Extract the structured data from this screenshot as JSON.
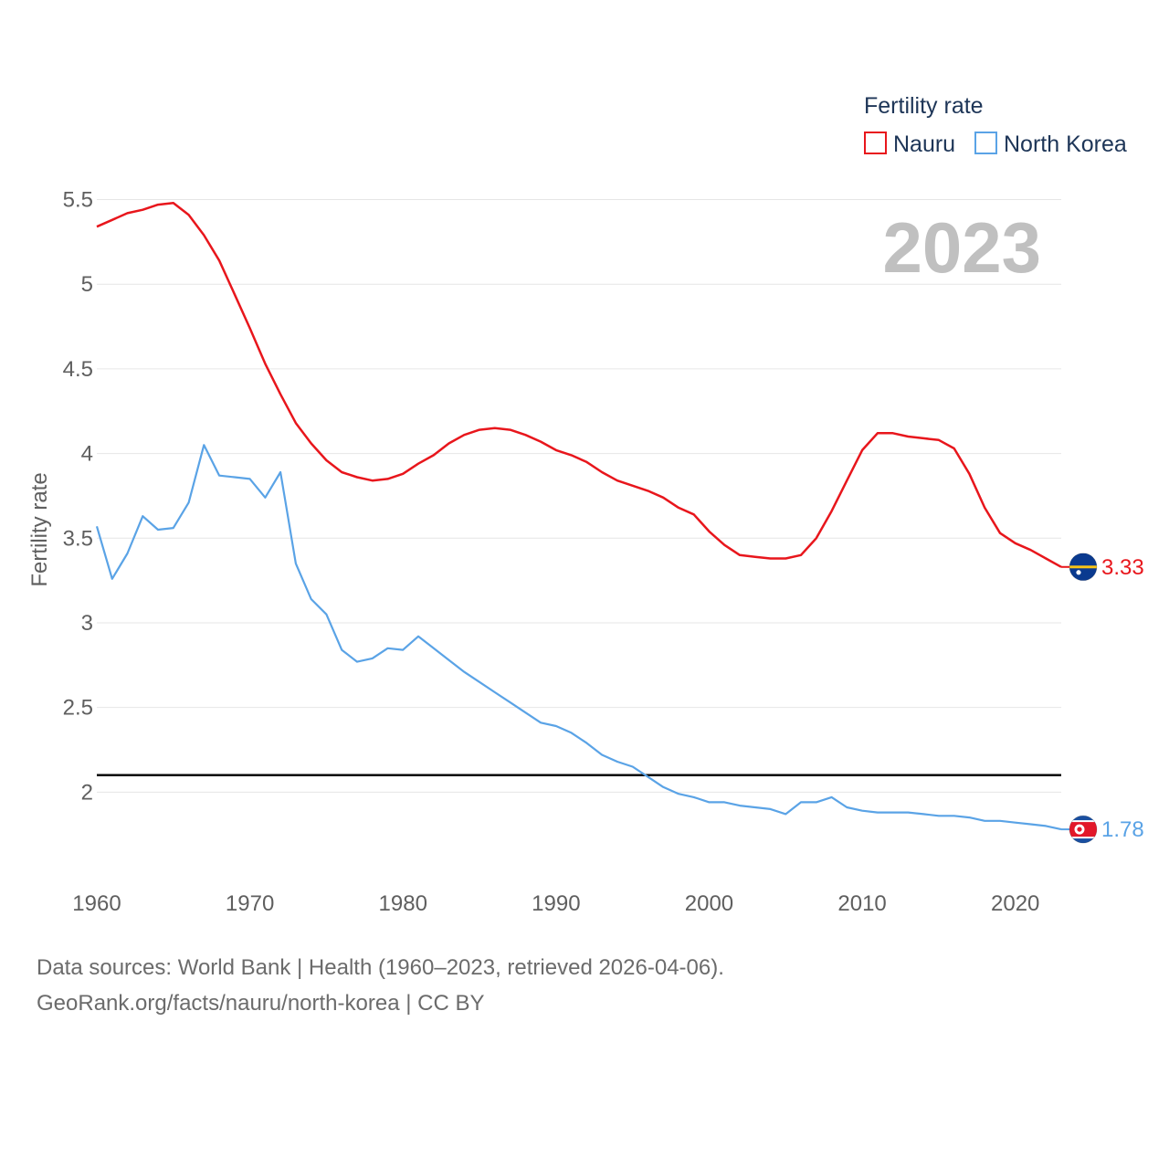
{
  "chart_data": {
    "type": "line",
    "watermark_year": "2023",
    "ylabel": "Fertility rate",
    "xlim": [
      1960,
      2023
    ],
    "ylim": [
      1.5,
      5.6
    ],
    "y_ticks": [
      2,
      2.5,
      3,
      3.5,
      4,
      4.5,
      5,
      5.5
    ],
    "y_tick_labels": [
      "2",
      "2.5",
      "3",
      "3.5",
      "4",
      "4.5",
      "5",
      "5.5"
    ],
    "x_ticks": [
      1960,
      1970,
      1980,
      1990,
      2000,
      2010,
      2020
    ],
    "x_tick_labels": [
      "1960",
      "1970",
      "1980",
      "1990",
      "2000",
      "2010",
      "2020"
    ],
    "reference_line": {
      "y": 2.1,
      "color": "#000000"
    },
    "legend": {
      "title": "Fertility rate",
      "position": "top-right"
    },
    "x": [
      1960,
      1961,
      1962,
      1963,
      1964,
      1965,
      1966,
      1967,
      1968,
      1969,
      1970,
      1971,
      1972,
      1973,
      1974,
      1975,
      1976,
      1977,
      1978,
      1979,
      1980,
      1981,
      1982,
      1983,
      1984,
      1985,
      1986,
      1987,
      1988,
      1989,
      1990,
      1991,
      1992,
      1993,
      1994,
      1995,
      1996,
      1997,
      1998,
      1999,
      2000,
      2001,
      2002,
      2003,
      2004,
      2005,
      2006,
      2007,
      2008,
      2009,
      2010,
      2011,
      2012,
      2013,
      2014,
      2015,
      2016,
      2017,
      2018,
      2019,
      2020,
      2021,
      2022,
      2023
    ],
    "series": [
      {
        "name": "Nauru",
        "color": "#e8161c",
        "end_label": "3.33",
        "values": [
          5.34,
          5.38,
          5.42,
          5.44,
          5.47,
          5.48,
          5.41,
          5.29,
          5.14,
          4.94,
          4.74,
          4.53,
          4.35,
          4.18,
          4.06,
          3.96,
          3.89,
          3.86,
          3.84,
          3.85,
          3.88,
          3.94,
          3.99,
          4.06,
          4.11,
          4.14,
          4.15,
          4.14,
          4.11,
          4.07,
          4.02,
          3.99,
          3.95,
          3.89,
          3.84,
          3.81,
          3.78,
          3.74,
          3.68,
          3.64,
          3.54,
          3.46,
          3.4,
          3.39,
          3.38,
          3.38,
          3.4,
          3.5,
          3.66,
          3.84,
          4.02,
          4.12,
          4.12,
          4.1,
          4.09,
          4.08,
          4.03,
          3.88,
          3.68,
          3.53,
          3.47,
          3.43,
          3.38,
          3.33
        ]
      },
      {
        "name": "North Korea",
        "color": "#5aa3e6",
        "end_label": "1.78",
        "values": [
          3.57,
          3.26,
          3.41,
          3.63,
          3.55,
          3.56,
          3.71,
          4.05,
          3.87,
          3.86,
          3.85,
          3.74,
          3.89,
          3.35,
          3.14,
          3.05,
          2.84,
          2.77,
          2.79,
          2.85,
          2.84,
          2.92,
          2.85,
          2.78,
          2.71,
          2.65,
          2.59,
          2.53,
          2.47,
          2.41,
          2.39,
          2.35,
          2.29,
          2.22,
          2.18,
          2.15,
          2.09,
          2.03,
          1.99,
          1.97,
          1.94,
          1.94,
          1.92,
          1.91,
          1.9,
          1.87,
          1.94,
          1.94,
          1.97,
          1.91,
          1.89,
          1.88,
          1.88,
          1.88,
          1.87,
          1.86,
          1.86,
          1.85,
          1.83,
          1.83,
          1.82,
          1.81,
          1.8,
          1.78
        ]
      }
    ]
  },
  "footer": {
    "source_line": "Data sources: World Bank | Health (1960–2023, retrieved 2026-04-06).",
    "url_line": "GeoRank.org/facts/nauru/north-korea | CC BY"
  },
  "flags": [
    "nauru-flag-icon",
    "north-korea-flag-icon"
  ]
}
